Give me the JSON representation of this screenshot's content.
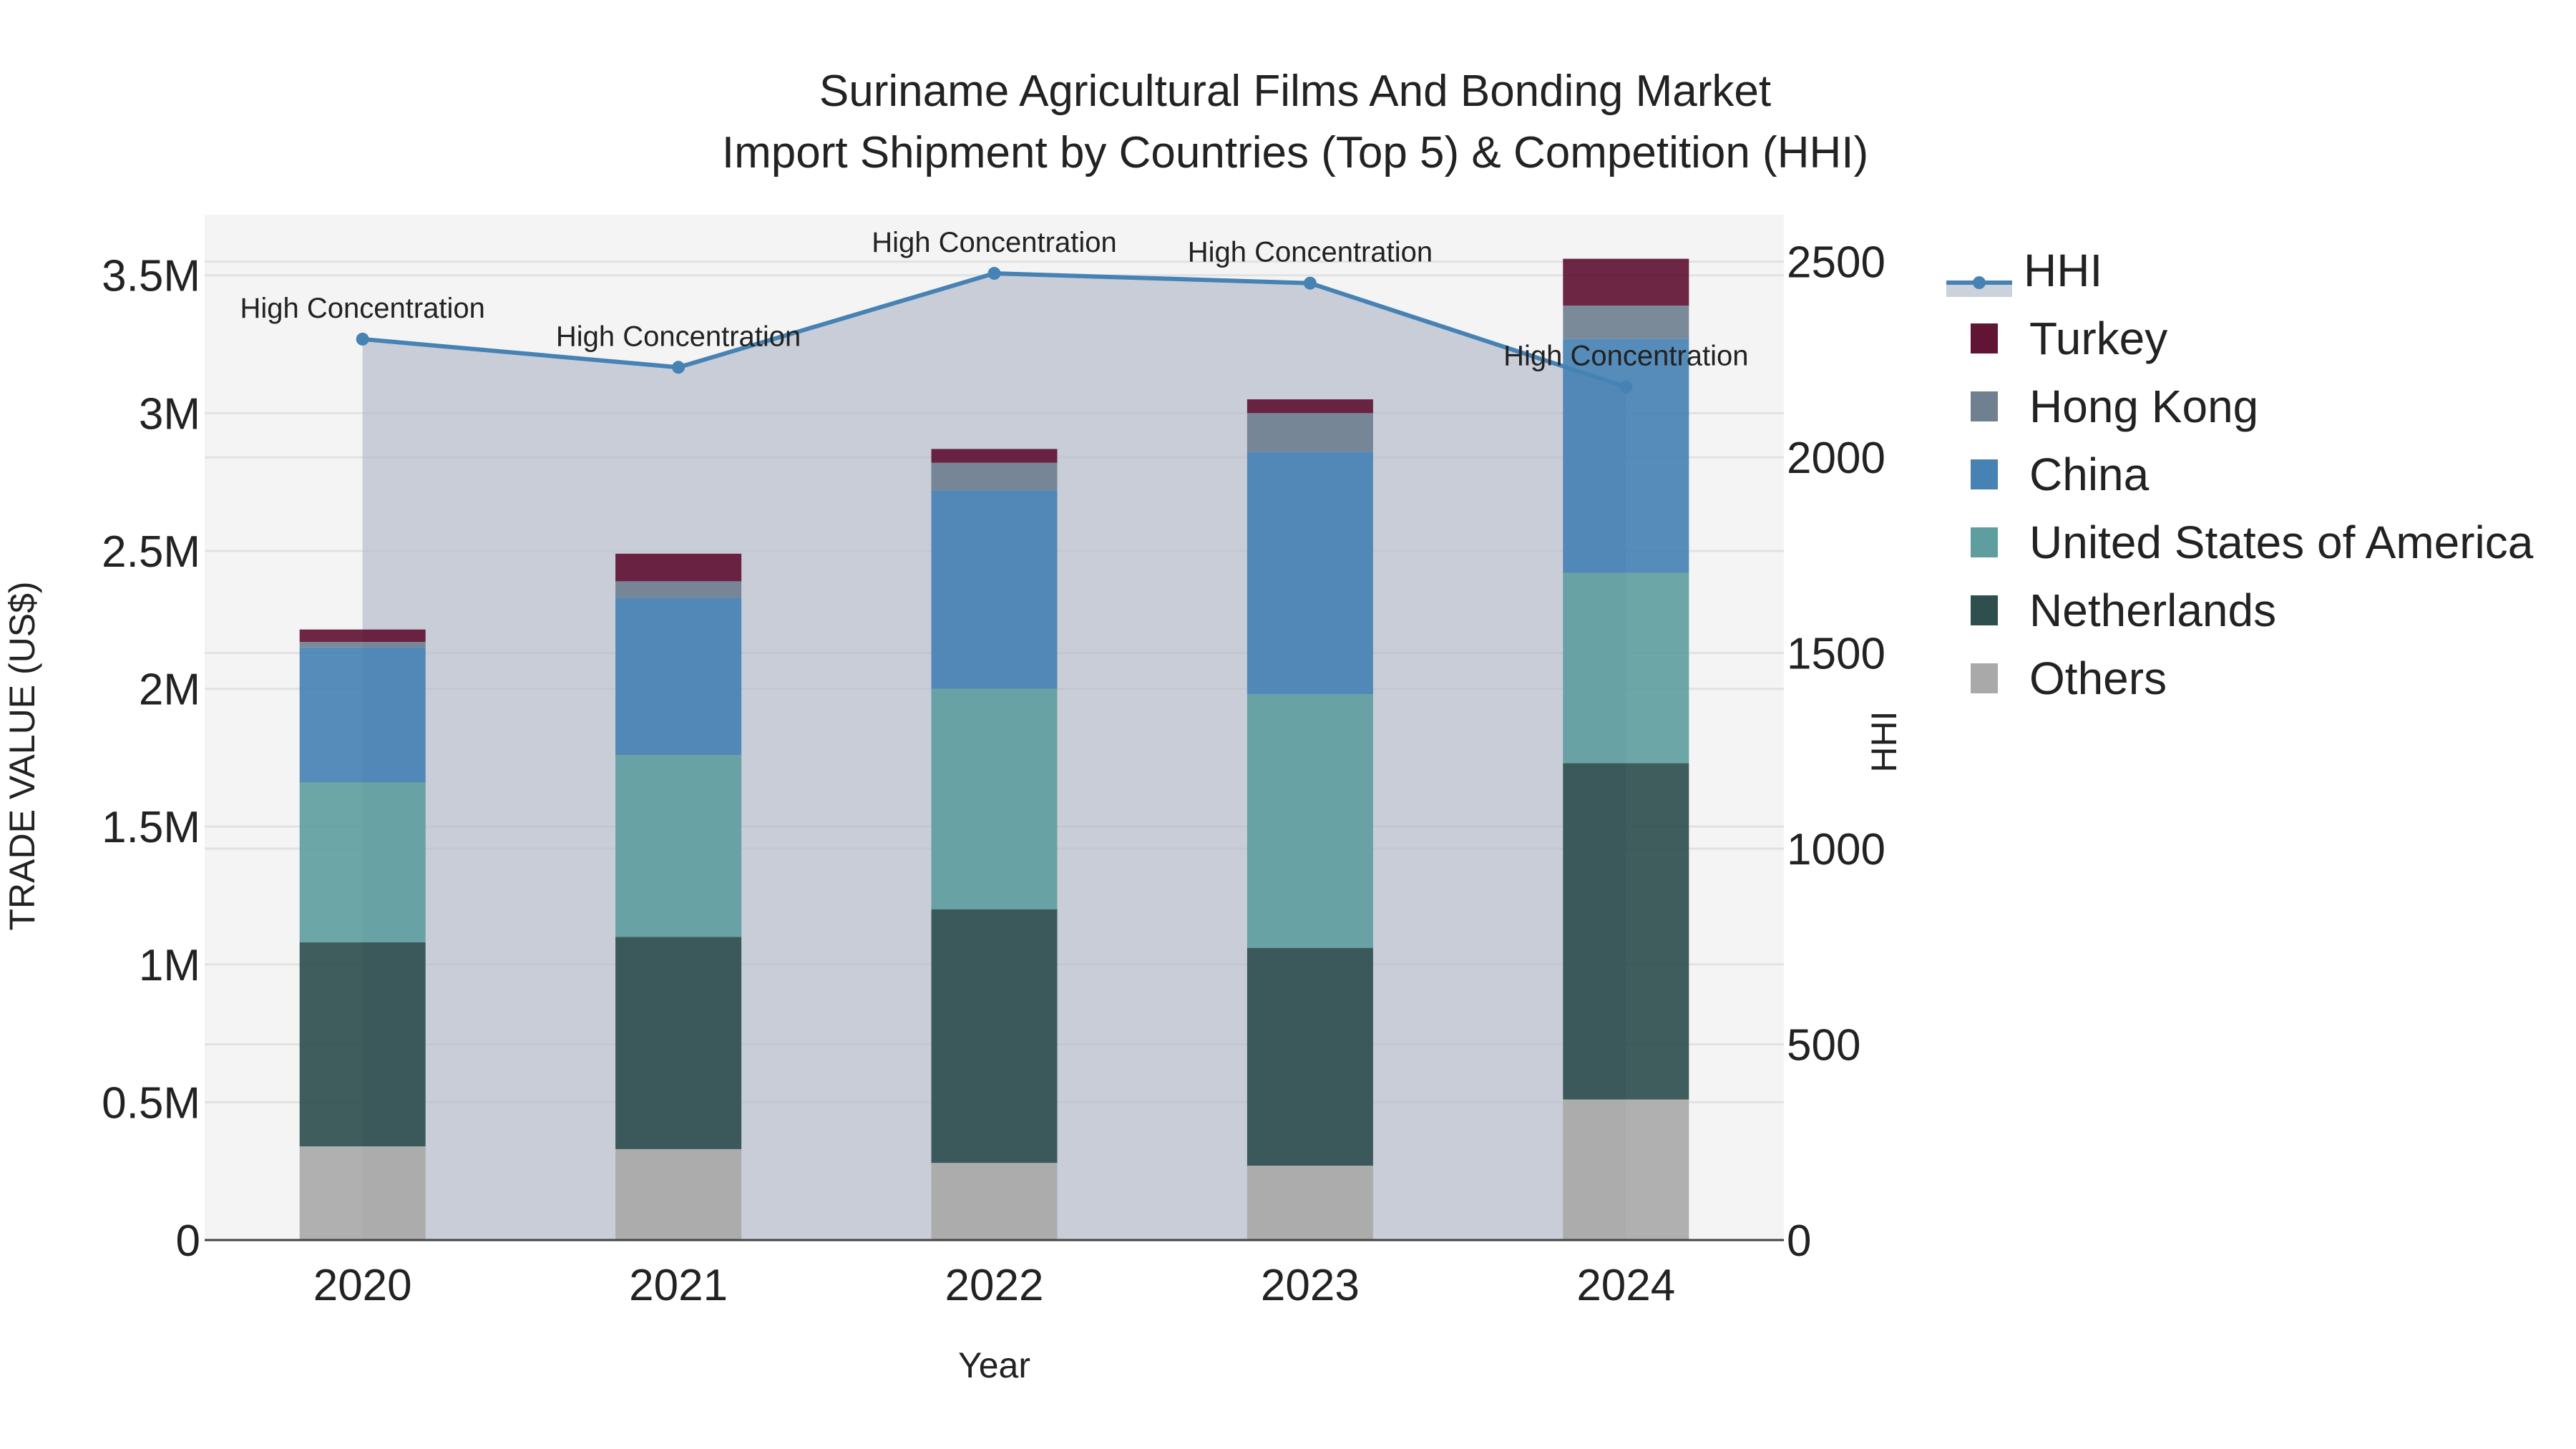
{
  "title": {
    "line1": "Suriname Agricultural Films And Bonding Market",
    "line2": "Import Shipment by Countries (Top 5) & Competition (HHI)"
  },
  "axes": {
    "x_label": "Year",
    "y_left_label": "TRADE VALUE (US$)",
    "y_right_label": "HHI",
    "y_left_ticks": [
      "0",
      "0.5M",
      "1M",
      "1.5M",
      "2M",
      "2.5M",
      "3M",
      "3.5M"
    ],
    "y_right_ticks": [
      "0",
      "500",
      "1000",
      "1500",
      "2000",
      "2500"
    ]
  },
  "legend": [
    {
      "label": "HHI",
      "color": "#4682b4",
      "type": "line"
    },
    {
      "label": "Turkey",
      "color": "#611434",
      "type": "bar"
    },
    {
      "label": "Hong Kong",
      "color": "#708090",
      "type": "bar"
    },
    {
      "label": "China",
      "color": "#4682b4",
      "type": "bar"
    },
    {
      "label": "United States of America",
      "color": "#5f9ea0",
      "type": "bar"
    },
    {
      "label": "Netherlands",
      "color": "#2f4f4f",
      "type": "bar"
    },
    {
      "label": "Others",
      "color": "#a9a9a9",
      "type": "bar"
    }
  ],
  "chart_data": {
    "type": "bar",
    "stacked": true,
    "title": "Suriname Agricultural Films And Bonding Market Import Shipment by Countries (Top 5) & Competition (HHI)",
    "xlabel": "Year",
    "ylabel": "TRADE VALUE (US$)",
    "y2label": "HHI",
    "ylim": [
      0,
      3720000
    ],
    "y2lim": [
      0,
      2620
    ],
    "categories": [
      "2020",
      "2021",
      "2022",
      "2023",
      "2024"
    ],
    "series": [
      {
        "name": "Others",
        "color": "#a9a9a9",
        "values": [
          340000,
          330000,
          280000,
          270000,
          510000
        ]
      },
      {
        "name": "Netherlands",
        "color": "#2f4f4f",
        "values": [
          740000,
          770000,
          920000,
          790000,
          1220000
        ]
      },
      {
        "name": "United States of America",
        "color": "#5f9ea0",
        "values": [
          580000,
          660000,
          800000,
          920000,
          690000
        ]
      },
      {
        "name": "China",
        "color": "#4682b4",
        "values": [
          490000,
          570000,
          720000,
          880000,
          850000
        ]
      },
      {
        "name": "Hong Kong",
        "color": "#708090",
        "values": [
          20000,
          60000,
          100000,
          140000,
          120000
        ]
      },
      {
        "name": "Turkey",
        "color": "#611434",
        "values": [
          45000,
          100000,
          50000,
          50000,
          170000
        ]
      }
    ],
    "line_series": {
      "name": "HHI",
      "axis": "right",
      "color": "#4682b4",
      "values": [
        2302,
        2230,
        2470,
        2445,
        2180
      ],
      "annotations": [
        "High Concentration",
        "High Concentration",
        "High Concentration",
        "High Concentration",
        "High Concentration"
      ]
    },
    "grid": true,
    "legend_position": "right"
  }
}
